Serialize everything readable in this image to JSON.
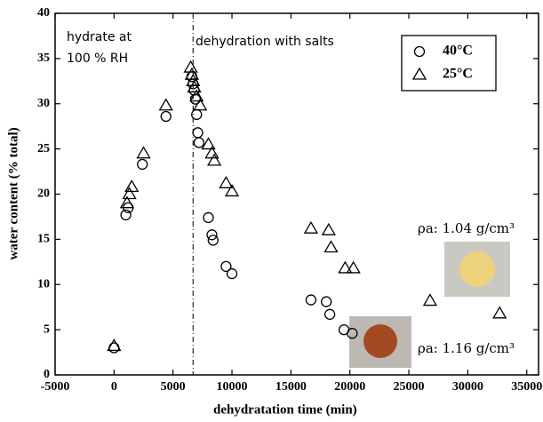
{
  "chart_data": {
    "type": "scatter",
    "x_label": "dehydratation time (min)",
    "y_label": "water content (% total)",
    "xlim": [
      -5000,
      36000
    ],
    "ylim": [
      0,
      40
    ],
    "xticks": [
      -5000,
      0,
      5000,
      10000,
      15000,
      20000,
      25000,
      30000,
      35000
    ],
    "yticks": [
      0,
      5,
      10,
      15,
      20,
      25,
      30,
      35,
      40
    ],
    "annotations": [
      "hydrate at",
      "100 % RH",
      "dehydration with salts",
      "ρa: 1.04 g/cm³",
      "ρa: 1.16 g/cm³"
    ],
    "divider_x": 6700,
    "legend": "upper right",
    "series": [
      {
        "name": "40°C",
        "marker": "circle",
        "color": "#000000",
        "x": [
          0,
          1000,
          1200,
          2400,
          4400,
          6600,
          6700,
          6800,
          6900,
          7000,
          7100,
          7200,
          8000,
          8300,
          8400,
          9500,
          10000,
          16700,
          18000,
          18300,
          19500,
          20200
        ],
        "values": [
          3.0,
          17.7,
          18.5,
          23.3,
          28.6,
          33.0,
          32.2,
          31.5,
          30.5,
          28.8,
          26.8,
          25.7,
          17.4,
          15.5,
          14.9,
          12.0,
          11.2,
          8.3,
          8.1,
          6.7,
          5.0,
          4.6
        ]
      },
      {
        "name": "25°C",
        "marker": "triangle",
        "color": "#000000",
        "x": [
          0,
          1100,
          1300,
          1500,
          2500,
          4400,
          6500,
          6600,
          6700,
          6800,
          7000,
          7300,
          8000,
          8300,
          8500,
          9500,
          10000,
          16700,
          18200,
          18400,
          19600,
          20300,
          26800,
          32700
        ],
        "values": [
          3.2,
          19.0,
          20.0,
          20.8,
          24.5,
          29.8,
          34.0,
          33.2,
          32.5,
          31.8,
          30.8,
          29.8,
          25.5,
          24.5,
          23.7,
          21.2,
          20.3,
          16.2,
          16.0,
          14.1,
          11.8,
          11.8,
          8.2,
          6.8
        ]
      }
    ]
  }
}
